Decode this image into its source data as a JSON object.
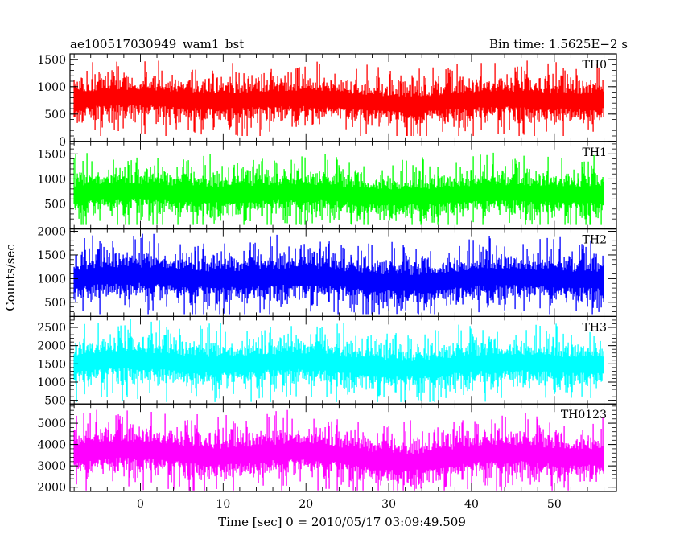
{
  "header": {
    "title": "ae100517030949_wam1_bst",
    "bin_time": "Bin time: 1.5625E−2 s"
  },
  "axes": {
    "ylabel": "Counts/sec",
    "xlabel": "Time [sec] 0 = 2010/05/17 03:09:49.509"
  },
  "chart_data": {
    "type": "line",
    "title": "ae100517030949_wam1_bst",
    "subtitle": "Bin time: 1.5625E−2 s",
    "xlabel": "Time [sec] 0 = 2010/05/17 03:09:49.509",
    "ylabel": "Counts/sec",
    "xlim": [
      -8.5,
      57.5
    ],
    "x_range_data": [
      -8,
      56
    ],
    "bin_time": 0.015625,
    "x_ticks": [
      0,
      10,
      20,
      30,
      40,
      50
    ],
    "grid": false,
    "panels": [
      {
        "name": "TH0",
        "color": "#ff0000",
        "ylim": [
          0,
          1600
        ],
        "y_ticks": [
          0,
          500,
          1000,
          1500
        ],
        "mean": 750,
        "min_approx": 100,
        "max_approx": 1560
      },
      {
        "name": "TH1",
        "color": "#00ff00",
        "ylim": [
          0,
          1750
        ],
        "y_ticks": [
          500,
          1000,
          1500
        ],
        "mean": 700,
        "min_approx": 80,
        "max_approx": 1700
      },
      {
        "name": "TH2",
        "color": "#0000ff",
        "ylim": [
          200,
          2050
        ],
        "y_ticks": [
          500,
          1000,
          1500,
          2000
        ],
        "mean": 1000,
        "min_approx": 250,
        "max_approx": 2050
      },
      {
        "name": "TH3",
        "color": "#00ffff",
        "ylim": [
          400,
          2800
        ],
        "y_ticks": [
          500,
          1000,
          1500,
          2000,
          2500
        ],
        "mean": 1500,
        "min_approx": 450,
        "max_approx": 2750
      },
      {
        "name": "TH0123",
        "color": "#ff00ff",
        "ylim": [
          1800,
          5900
        ],
        "y_ticks": [
          2000,
          3000,
          4000,
          5000
        ],
        "mean": 3500,
        "min_approx": 1850,
        "max_approx": 5800
      }
    ]
  }
}
